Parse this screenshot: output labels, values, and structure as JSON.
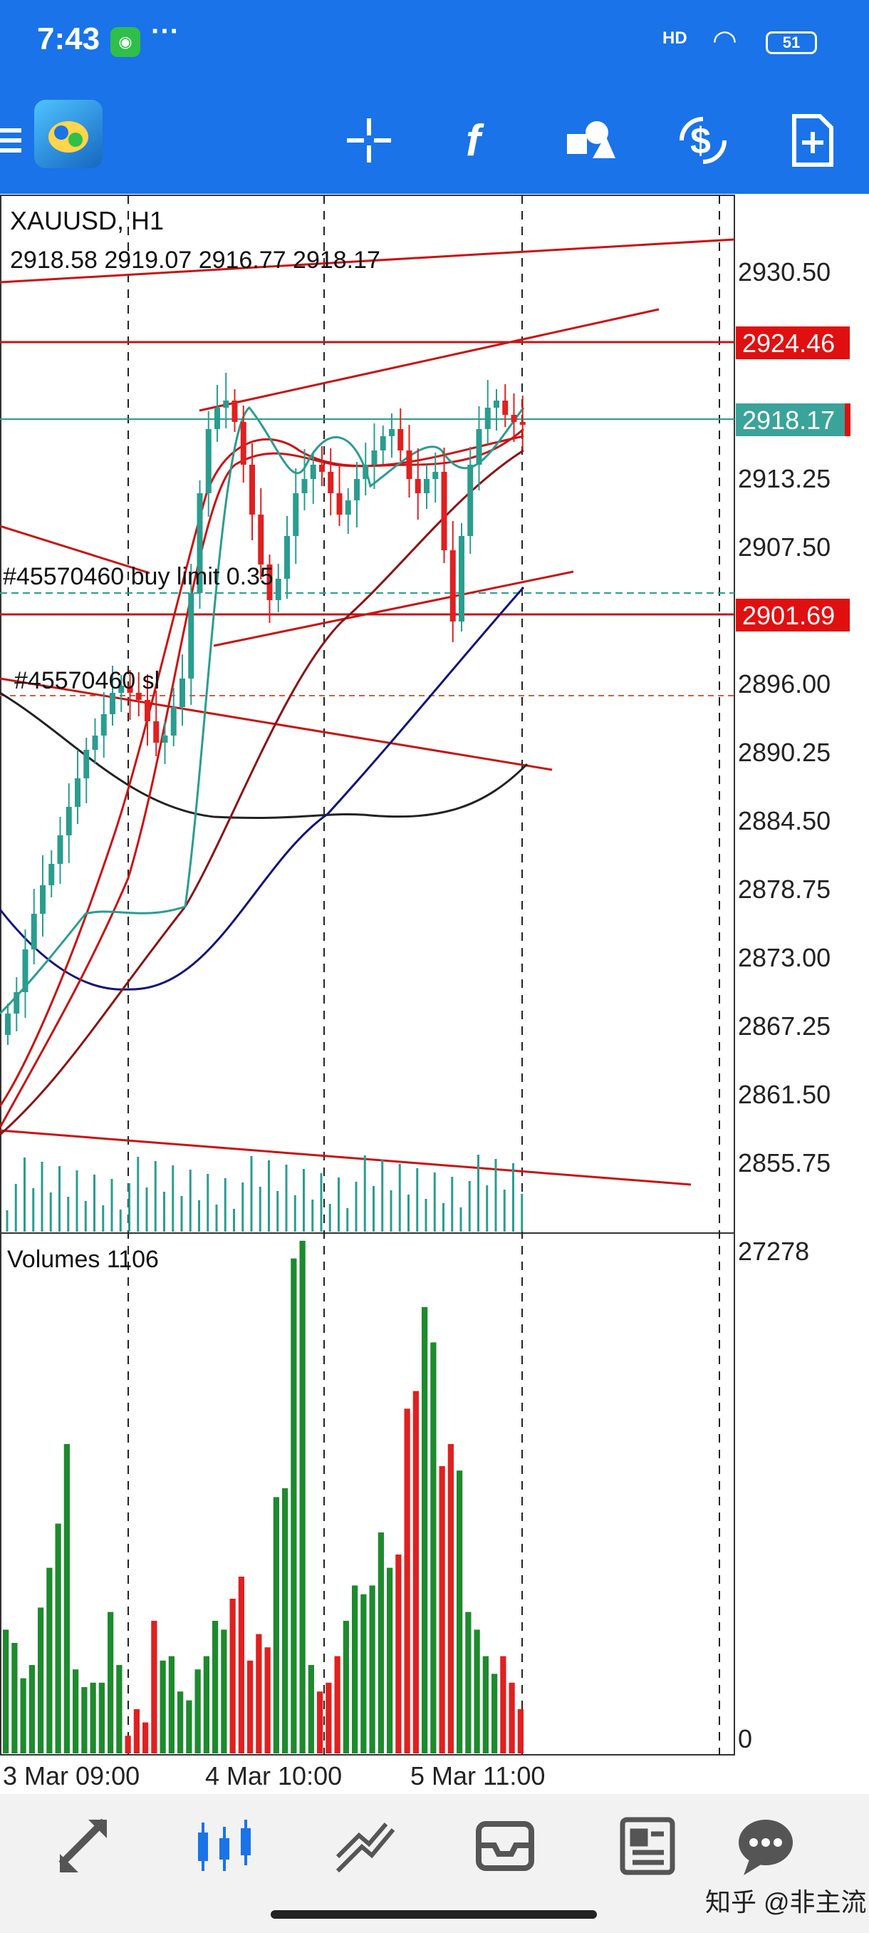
{
  "status_bar": {
    "time": "7:43",
    "hd": "HD",
    "battery": "51"
  },
  "toolbar": {
    "icons": [
      "menu-icon",
      "app-logo-icon",
      "crosshair-icon",
      "function-icon",
      "objects-icon",
      "trade-icon",
      "new-order-icon"
    ]
  },
  "chart": {
    "symbol": "XAUUSD, H1",
    "ohlc": "2918.58 2919.07 2916.77 2918.17",
    "order_label": "#45570460 buy limit 0.35",
    "sl_label": "#45570460 sl",
    "price_axis": [
      "2930.50",
      "2913.25",
      "2907.50",
      "2896.00",
      "2890.25",
      "2884.50",
      "2878.75",
      "2873.00",
      "2867.25",
      "2861.50",
      "2855.75"
    ],
    "badges": {
      "level1": "2924.46",
      "current": "2918.17",
      "level2": "2901.69"
    },
    "volume_label": "Volumes 1106",
    "volume_axis_top": "27278",
    "volume_axis_bottom": "0",
    "time_axis": [
      "3 Mar 09:00",
      "4 Mar 10:00",
      "5 Mar 11:00"
    ],
    "colors": {
      "bull": "#1e8a2e",
      "bear": "#e02020",
      "red_line": "#c81414",
      "teal": "#2a9d8f",
      "navy": "#14147a",
      "badge_red": "#e01010",
      "badge_teal": "#3aa39a"
    }
  },
  "chart_data": {
    "type": "bar",
    "title": "Volumes 1106",
    "ylim": [
      0,
      27278
    ],
    "x": [
      "3 Mar 09:00",
      "4 Mar 10:00",
      "5 Mar 11:00"
    ]
  },
  "bottom_nav": [
    "quotes-icon",
    "chart-icon",
    "trade-icon",
    "history-icon",
    "news-icon",
    "messages-icon"
  ],
  "watermark": "知乎 @非主流"
}
